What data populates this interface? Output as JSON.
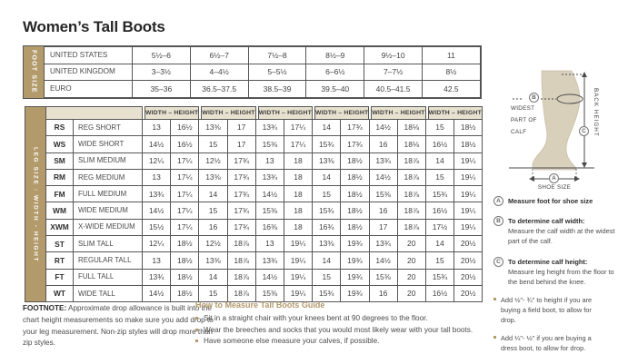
{
  "title": "Women’s Tall Boots",
  "colors": {
    "tan": "#b29a6b",
    "header_beige": "#e8e1d0",
    "border": "#555555",
    "leg_fill": "#d9d0bc"
  },
  "foot_size_table": {
    "sidebar_label": "FOOT SIZE",
    "rows": [
      {
        "label": "UNITED STATES",
        "values": [
          "5½–6",
          "6½–7",
          "7½–8",
          "8½–9",
          "9½–10",
          "11"
        ]
      },
      {
        "label": "UNITED KINGDOM",
        "values": [
          "3–3½",
          "4–4½",
          "5–5½",
          "6–6½",
          "7–7½",
          "8½"
        ]
      },
      {
        "label": "EURO",
        "values": [
          "35–36",
          "36.5–37.5",
          "38.5–39",
          "39.5–40",
          "40.5–41.5",
          "42.5"
        ]
      }
    ]
  },
  "leg_size_table": {
    "sidebar_label": "LEG SIZE : WIDTH - HEIGHT",
    "column_header": "WIDTH – HEIGHT",
    "column_header_count": 6,
    "rows": [
      {
        "code": "RS",
        "label": "REG SHORT",
        "values": [
          "13",
          "16½",
          "13⅜",
          "17",
          "13¾",
          "17¼",
          "14",
          "17¾",
          "14½",
          "18⅛",
          "15",
          "18½"
        ]
      },
      {
        "code": "WS",
        "label": "WIDE SHORT",
        "values": [
          "14½",
          "16½",
          "15",
          "17",
          "15⅜",
          "17¼",
          "15¾",
          "17¾",
          "16",
          "18⅛",
          "16½",
          "18½"
        ]
      },
      {
        "code": "SM",
        "label": "SLIM MEDIUM",
        "values": [
          "12¼",
          "17¼",
          "12½",
          "17¾",
          "13",
          "18",
          "13⅜",
          "18½",
          "13¾",
          "18⅞",
          "14",
          "19¼"
        ]
      },
      {
        "code": "RM",
        "label": "REG MEDIUM",
        "values": [
          "13",
          "17¼",
          "13⅜",
          "17¾",
          "13¾",
          "18",
          "14",
          "18½",
          "14½",
          "18⅞",
          "15",
          "19¼"
        ]
      },
      {
        "code": "FM",
        "label": "FULL MEDIUM",
        "values": [
          "13¾",
          "17¼",
          "14",
          "17¾",
          "14½",
          "18",
          "15",
          "18½",
          "15⅜",
          "18⅞",
          "15¾",
          "19¼"
        ]
      },
      {
        "code": "WM",
        "label": "WIDE MEDIUM",
        "values": [
          "14½",
          "17¼",
          "15",
          "17¾",
          "15⅜",
          "18",
          "15¾",
          "18½",
          "16",
          "18⅞",
          "16½",
          "19¼"
        ]
      },
      {
        "code": "XWM",
        "label": "X-WIDE MEDIUM",
        "values": [
          "15½",
          "17¼",
          "16",
          "17¾",
          "16⅜",
          "18",
          "16¾",
          "18½",
          "17",
          "18⅞",
          "17½",
          "19¼"
        ]
      },
      {
        "code": "ST",
        "label": "SLIM TALL",
        "values": [
          "12¼",
          "18½",
          "12½",
          "18⅞",
          "13",
          "19¼",
          "13⅜",
          "19¾",
          "13¾",
          "20",
          "14",
          "20½"
        ]
      },
      {
        "code": "RT",
        "label": "REGULAR TALL",
        "values": [
          "13",
          "18½",
          "13⅜",
          "18⅞",
          "13¾",
          "19¼",
          "14",
          "19¾",
          "14½",
          "20",
          "15",
          "20½"
        ]
      },
      {
        "code": "FT",
        "label": "FULL TALL",
        "values": [
          "13¾",
          "18½",
          "14",
          "18⅞",
          "14½",
          "19¼",
          "15",
          "19¾",
          "15⅜",
          "20",
          "15¾",
          "20½"
        ]
      },
      {
        "code": "WT",
        "label": "WIDE TALL",
        "values": [
          "14½",
          "18½",
          "15",
          "18⅞",
          "15⅜",
          "19¼",
          "15¾",
          "19¾",
          "16",
          "20",
          "16½",
          "20½"
        ]
      }
    ]
  },
  "diagram": {
    "point_a": "A",
    "point_b": "B",
    "point_c": "C",
    "widest_label": "WIDEST PART OF CALF",
    "back_height_label": "BACK HEIGHT",
    "shoe_size_label": "SHOE SIZE"
  },
  "measure_notes": {
    "a": {
      "letter": "A",
      "bold": "Measure foot for shoe size"
    },
    "b": {
      "letter": "B",
      "bold": "To determine calf width:",
      "text": "Measure the calf width at the widest part of the calf."
    },
    "c": {
      "letter": "C",
      "bold": "To determine calf height:",
      "text": "Measure leg height from the floor to the bend behind the knee."
    },
    "bullets": [
      "Add ½\"- ¾\" to height if you are buying a field boot, to allow for drop.",
      "Add ¼\"- ½\" if you are buying a dress boot, to allow for drop."
    ]
  },
  "footnote": {
    "label": "FOOTNOTE:",
    "text": " Approximate drop allowance is built into the chart height measurements so make sure you add drop to your leg measurement. Non-zip styles will drop more than zip styles."
  },
  "guide": {
    "title": "How to Measure Tall Boots Guide",
    "bullets": [
      "Sit in a straight chair with your knees bent at 90 degrees to the floor.",
      "Wear the breeches and socks that you would most likely wear with your tall boots.",
      "Have someone else measure your calves, if possible."
    ]
  }
}
